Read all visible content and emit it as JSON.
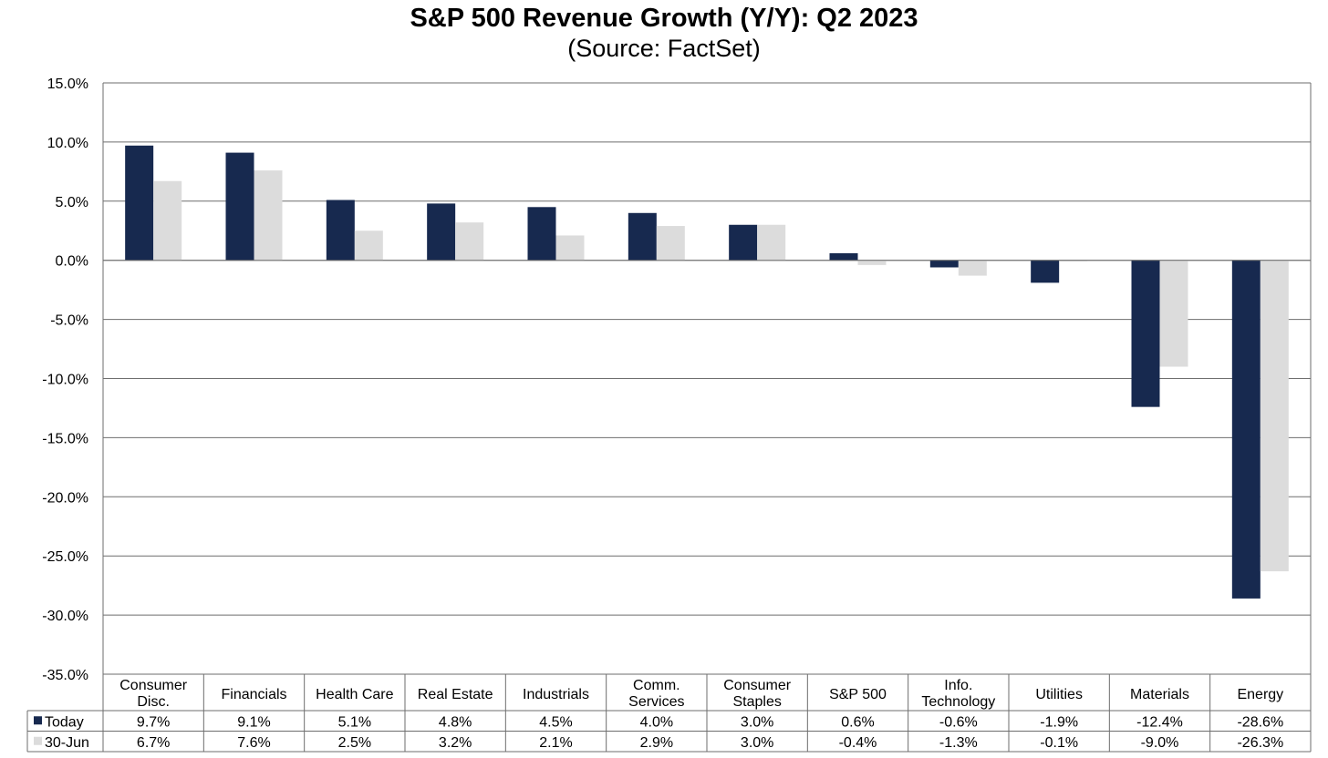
{
  "chart_data": {
    "type": "bar",
    "title": "S&P 500 Revenue Growth (Y/Y): Q2 2023",
    "subtitle": "(Source: FactSet)",
    "categories": [
      [
        "Consumer",
        "Disc."
      ],
      [
        "Financials"
      ],
      [
        "Health Care"
      ],
      [
        "Real Estate"
      ],
      [
        "Industrials"
      ],
      [
        "Comm.",
        "Services"
      ],
      [
        "Consumer",
        "Staples"
      ],
      [
        "S&P 500"
      ],
      [
        "Info.",
        "Technology"
      ],
      [
        "Utilities"
      ],
      [
        "Materials"
      ],
      [
        "Energy"
      ]
    ],
    "series": [
      {
        "name": "Today",
        "color": "#17294f",
        "values": [
          9.7,
          9.1,
          5.1,
          4.8,
          4.5,
          4.0,
          3.0,
          0.6,
          -0.6,
          -1.9,
          -12.4,
          -28.6
        ],
        "labels": [
          "9.7%",
          "9.1%",
          "5.1%",
          "4.8%",
          "4.5%",
          "4.0%",
          "3.0%",
          "0.6%",
          "-0.6%",
          "-1.9%",
          "-12.4%",
          "-28.6%"
        ]
      },
      {
        "name": "30-Jun",
        "color": "#dcdcdc",
        "values": [
          6.7,
          7.6,
          2.5,
          3.2,
          2.1,
          2.9,
          3.0,
          -0.4,
          -1.3,
          -0.1,
          -9.0,
          -26.3
        ],
        "labels": [
          "6.7%",
          "7.6%",
          "2.5%",
          "3.2%",
          "2.1%",
          "2.9%",
          "3.0%",
          "-0.4%",
          "-1.3%",
          "-0.1%",
          "-9.0%",
          "-26.3%"
        ]
      }
    ],
    "ylim": [
      -35,
      15
    ],
    "yticks": [
      15,
      10,
      5,
      0,
      -5,
      -10,
      -15,
      -20,
      -25,
      -30,
      -35
    ],
    "ytick_labels": [
      "15.0%",
      "10.0%",
      "5.0%",
      "0.0%",
      "-5.0%",
      "-10.0%",
      "-15.0%",
      "-20.0%",
      "-25.0%",
      "-30.0%",
      "-35.0%"
    ],
    "grid": true,
    "legend": "data table below x-axis"
  }
}
